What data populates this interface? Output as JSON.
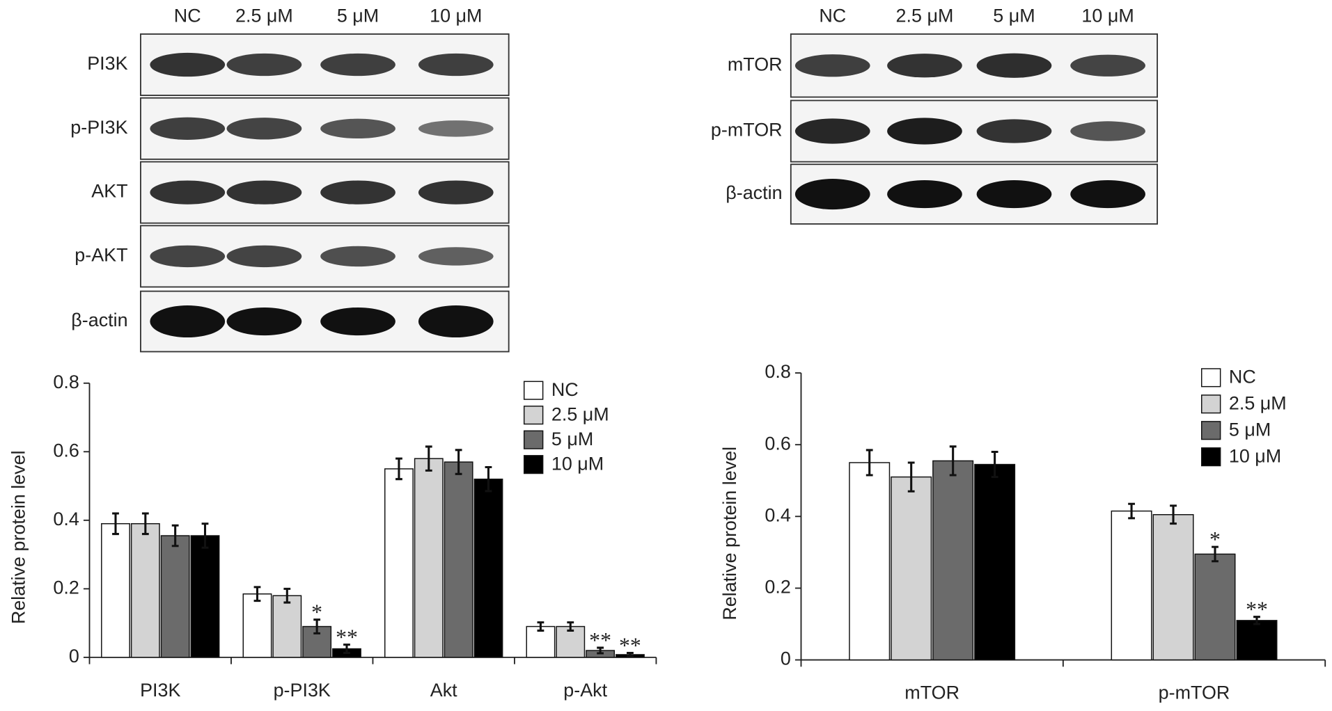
{
  "blots": [
    {
      "lanes": [
        "NC",
        "2.5 μM",
        "5 μM",
        "10 μM"
      ],
      "rows": [
        "PI3K",
        "p-PI3K",
        "AKT",
        "p-AKT",
        "β-actin"
      ]
    },
    {
      "lanes": [
        "NC",
        "2.5 μM",
        "5 μM",
        "10 μM"
      ],
      "rows": [
        "mTOR",
        "p-mTOR",
        "β-actin"
      ]
    }
  ],
  "chart_data": [
    {
      "type": "bar",
      "y_label": "Relative protein level",
      "categories": [
        "PI3K",
        "p-PI3K",
        "Akt",
        "p-Akt"
      ],
      "ylim": [
        0,
        0.8
      ],
      "yticks": [
        0,
        0.2,
        0.4,
        0.6,
        0.8
      ],
      "series": [
        {
          "name": "NC",
          "color": "#ffffff",
          "values": [
            0.39,
            0.185,
            0.55,
            0.09
          ],
          "errors": [
            0.03,
            0.02,
            0.03,
            0.012
          ],
          "annotations": [
            null,
            null,
            null,
            null
          ]
        },
        {
          "name": "2.5 μM",
          "color": "#d3d3d3",
          "values": [
            0.39,
            0.18,
            0.58,
            0.09
          ],
          "errors": [
            0.03,
            0.02,
            0.035,
            0.012
          ],
          "annotations": [
            null,
            null,
            null,
            null
          ]
        },
        {
          "name": "5 μM",
          "color": "#6b6b6b",
          "values": [
            0.355,
            0.09,
            0.57,
            0.02
          ],
          "errors": [
            0.03,
            0.02,
            0.035,
            0.008
          ],
          "annotations": [
            null,
            "*",
            null,
            "**"
          ]
        },
        {
          "name": "10 μM",
          "color": "#000000",
          "values": [
            0.355,
            0.025,
            0.52,
            0.008
          ],
          "errors": [
            0.035,
            0.012,
            0.035,
            0.005
          ],
          "annotations": [
            null,
            "**",
            null,
            "**"
          ]
        }
      ]
    },
    {
      "type": "bar",
      "y_label": "Relative protein level",
      "categories": [
        "mTOR",
        "p-mTOR"
      ],
      "ylim": [
        0,
        0.8
      ],
      "yticks": [
        0,
        0.2,
        0.4,
        0.6,
        0.8
      ],
      "series": [
        {
          "name": "NC",
          "color": "#ffffff",
          "values": [
            0.55,
            0.415
          ],
          "errors": [
            0.035,
            0.02
          ],
          "annotations": [
            null,
            null
          ]
        },
        {
          "name": "2.5 μM",
          "color": "#d3d3d3",
          "values": [
            0.51,
            0.405
          ],
          "errors": [
            0.04,
            0.025
          ],
          "annotations": [
            null,
            null
          ]
        },
        {
          "name": "5 μM",
          "color": "#6b6b6b",
          "values": [
            0.555,
            0.295
          ],
          "errors": [
            0.04,
            0.02
          ],
          "annotations": [
            null,
            "*"
          ]
        },
        {
          "name": "10 μM",
          "color": "#000000",
          "values": [
            0.545,
            0.11
          ],
          "errors": [
            0.035,
            0.01
          ],
          "annotations": [
            null,
            "**"
          ]
        }
      ]
    }
  ]
}
